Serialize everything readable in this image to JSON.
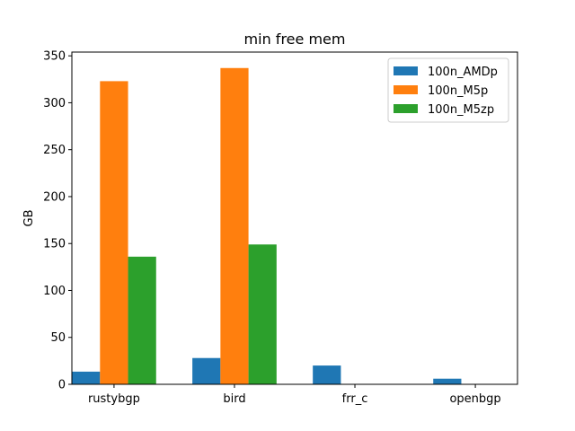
{
  "chart_data": {
    "type": "bar",
    "title": "min free mem",
    "xlabel": "",
    "ylabel": "GB",
    "categories": [
      "rustybgp",
      "bird",
      "frr_c",
      "openbgp"
    ],
    "series": [
      {
        "name": "100n_AMDp",
        "color": "#1f77b4",
        "values": [
          13.5,
          28,
          20,
          6
        ]
      },
      {
        "name": "100n_M5p",
        "color": "#ff7f0e",
        "values": [
          323,
          337,
          0,
          0
        ]
      },
      {
        "name": "100n_M5zp",
        "color": "#2ca02c",
        "values": [
          136,
          149,
          0,
          0
        ]
      }
    ],
    "ylim": [
      0,
      354
    ],
    "yticks": [
      "0",
      "50",
      "100",
      "150",
      "200",
      "250",
      "300",
      "350"
    ],
    "legend_position": "top-right",
    "grid": false
  }
}
